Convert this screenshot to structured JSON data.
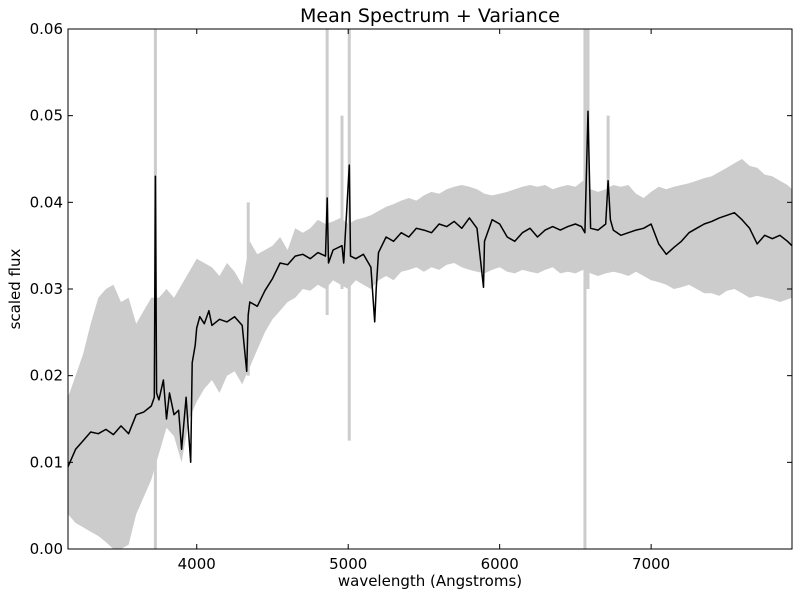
{
  "chart_data": {
    "type": "line",
    "title": "Mean Spectrum + Variance",
    "xlabel": "wavelength (Angstroms)",
    "ylabel": "scaled flux",
    "xlim": [
      3150,
      7930
    ],
    "ylim": [
      0.0,
      0.06
    ],
    "xticks": [
      4000,
      5000,
      6000,
      7000
    ],
    "xtick_labels": [
      "4000",
      "5000",
      "6000",
      "7000"
    ],
    "yticks": [
      0.0,
      0.01,
      0.02,
      0.03,
      0.04,
      0.05,
      0.06
    ],
    "ytick_labels": [
      "0.00",
      "0.01",
      "0.02",
      "0.03",
      "0.04",
      "0.05",
      "0.06"
    ],
    "grid": false,
    "colors": {
      "mean": "#000000",
      "variance": "#cccccc",
      "axes": "#000000"
    },
    "series": [
      {
        "name": "mean",
        "style": "line",
        "x": [
          3150,
          3200,
          3250,
          3300,
          3350,
          3400,
          3450,
          3500,
          3550,
          3600,
          3650,
          3700,
          3720,
          3727,
          3735,
          3750,
          3780,
          3800,
          3820,
          3850,
          3880,
          3900,
          3930,
          3960,
          3970,
          3990,
          4000,
          4020,
          4050,
          4080,
          4100,
          4150,
          4200,
          4250,
          4300,
          4330,
          4340,
          4350,
          4400,
          4450,
          4500,
          4550,
          4600,
          4650,
          4700,
          4750,
          4800,
          4850,
          4861,
          4870,
          4900,
          4959,
          4970,
          5007,
          5015,
          5050,
          5100,
          5150,
          5175,
          5185,
          5200,
          5250,
          5300,
          5350,
          5400,
          5450,
          5500,
          5550,
          5600,
          5650,
          5700,
          5750,
          5800,
          5850,
          5893,
          5900,
          5950,
          6000,
          6050,
          6100,
          6150,
          6200,
          6250,
          6300,
          6350,
          6400,
          6450,
          6500,
          6540,
          6563,
          6583,
          6600,
          6650,
          6700,
          6716,
          6731,
          6750,
          6800,
          6850,
          6900,
          6950,
          7000,
          7050,
          7100,
          7150,
          7200,
          7250,
          7300,
          7350,
          7400,
          7450,
          7500,
          7550,
          7600,
          7650,
          7700,
          7750,
          7800,
          7850,
          7900,
          7930
        ],
        "y": [
          0.0095,
          0.0115,
          0.0125,
          0.0135,
          0.0133,
          0.0138,
          0.0132,
          0.0142,
          0.0133,
          0.0155,
          0.0158,
          0.0165,
          0.0175,
          0.043,
          0.018,
          0.0172,
          0.0195,
          0.015,
          0.018,
          0.0155,
          0.016,
          0.0115,
          0.0175,
          0.01,
          0.0215,
          0.0235,
          0.0255,
          0.0268,
          0.026,
          0.0275,
          0.0258,
          0.0265,
          0.0262,
          0.0268,
          0.0258,
          0.0205,
          0.027,
          0.0285,
          0.028,
          0.0298,
          0.0312,
          0.033,
          0.0328,
          0.0338,
          0.034,
          0.0335,
          0.0342,
          0.0338,
          0.0405,
          0.033,
          0.0345,
          0.035,
          0.033,
          0.0443,
          0.0338,
          0.0335,
          0.034,
          0.0325,
          0.0262,
          0.03,
          0.0342,
          0.036,
          0.0355,
          0.0365,
          0.036,
          0.037,
          0.0368,
          0.0365,
          0.0375,
          0.0372,
          0.0378,
          0.037,
          0.0382,
          0.037,
          0.0302,
          0.0355,
          0.038,
          0.0375,
          0.036,
          0.0355,
          0.0365,
          0.037,
          0.036,
          0.0368,
          0.0372,
          0.0368,
          0.0372,
          0.0375,
          0.0372,
          0.0365,
          0.0505,
          0.037,
          0.0368,
          0.0375,
          0.0425,
          0.038,
          0.0368,
          0.0362,
          0.0365,
          0.0368,
          0.037,
          0.0375,
          0.0352,
          0.034,
          0.0348,
          0.0355,
          0.0365,
          0.037,
          0.0375,
          0.0378,
          0.0382,
          0.0385,
          0.0388,
          0.038,
          0.037,
          0.0352,
          0.0362,
          0.0358,
          0.0362,
          0.0355,
          0.035
        ]
      },
      {
        "name": "variance",
        "style": "band",
        "x": [
          3150,
          3200,
          3250,
          3300,
          3350,
          3400,
          3450,
          3500,
          3550,
          3600,
          3650,
          3700,
          3750,
          3800,
          3850,
          3900,
          3950,
          4000,
          4050,
          4100,
          4150,
          4200,
          4250,
          4300,
          4350,
          4400,
          4450,
          4500,
          4550,
          4600,
          4650,
          4700,
          4750,
          4800,
          4850,
          4900,
          4950,
          5000,
          5050,
          5100,
          5150,
          5200,
          5250,
          5300,
          5350,
          5400,
          5450,
          5500,
          5550,
          5600,
          5650,
          5700,
          5750,
          5800,
          5850,
          5900,
          5950,
          6000,
          6050,
          6100,
          6150,
          6200,
          6250,
          6300,
          6350,
          6400,
          6450,
          6500,
          6550,
          6600,
          6650,
          6700,
          6750,
          6800,
          6850,
          6900,
          6950,
          7000,
          7050,
          7100,
          7150,
          7200,
          7250,
          7300,
          7350,
          7400,
          7450,
          7500,
          7550,
          7600,
          7650,
          7700,
          7750,
          7800,
          7850,
          7900,
          7930
        ],
        "upper": [
          0.0175,
          0.02,
          0.0225,
          0.026,
          0.029,
          0.03,
          0.0305,
          0.0285,
          0.029,
          0.026,
          0.0275,
          0.029,
          0.029,
          0.03,
          0.029,
          0.0305,
          0.032,
          0.0335,
          0.033,
          0.0325,
          0.0315,
          0.033,
          0.032,
          0.0305,
          0.0355,
          0.034,
          0.0345,
          0.035,
          0.036,
          0.0345,
          0.037,
          0.0365,
          0.037,
          0.038,
          0.0375,
          0.0378,
          0.0382,
          0.0375,
          0.038,
          0.0382,
          0.0385,
          0.039,
          0.0395,
          0.0398,
          0.0402,
          0.0405,
          0.0402,
          0.0408,
          0.0412,
          0.041,
          0.0415,
          0.0418,
          0.042,
          0.0418,
          0.0415,
          0.041,
          0.0408,
          0.041,
          0.0412,
          0.0415,
          0.0418,
          0.042,
          0.0418,
          0.042,
          0.0415,
          0.0418,
          0.042,
          0.0418,
          0.0425,
          0.0415,
          0.0412,
          0.0415,
          0.042,
          0.0418,
          0.042,
          0.041,
          0.0405,
          0.0412,
          0.0418,
          0.0415,
          0.0418,
          0.042,
          0.0422,
          0.0425,
          0.0428,
          0.043,
          0.0435,
          0.044,
          0.0445,
          0.045,
          0.0442,
          0.044,
          0.0432,
          0.043,
          0.0425,
          0.042,
          0.0415
        ],
        "lower": [
          0.004,
          0.003,
          0.0025,
          0.002,
          0.0015,
          0.0008,
          0.0,
          0.0,
          0.0005,
          0.004,
          0.006,
          0.008,
          0.011,
          0.014,
          0.013,
          0.01,
          0.015,
          0.017,
          0.0185,
          0.0195,
          0.018,
          0.02,
          0.0205,
          0.019,
          0.021,
          0.023,
          0.025,
          0.0265,
          0.0275,
          0.0285,
          0.029,
          0.03,
          0.0298,
          0.0305,
          0.03,
          0.031,
          0.0305,
          0.03,
          0.031,
          0.0305,
          0.03,
          0.031,
          0.0315,
          0.031,
          0.032,
          0.0322,
          0.0325,
          0.032,
          0.0325,
          0.0322,
          0.0328,
          0.033,
          0.0325,
          0.0322,
          0.032,
          0.0318,
          0.0322,
          0.0325,
          0.032,
          0.0318,
          0.0322,
          0.032,
          0.0318,
          0.0322,
          0.0325,
          0.0318,
          0.032,
          0.0318,
          0.0322,
          0.0318,
          0.0315,
          0.0318,
          0.032,
          0.0318,
          0.0315,
          0.032,
          0.0315,
          0.031,
          0.0308,
          0.0305,
          0.03,
          0.0302,
          0.0305,
          0.03,
          0.0295,
          0.0295,
          0.0292,
          0.0298,
          0.03,
          0.0295,
          0.029,
          0.0292,
          0.029,
          0.0288,
          0.0285,
          0.0288,
          0.029
        ]
      }
    ],
    "spikes": [
      {
        "x": 3727,
        "from": 0.0,
        "to": 0.06
      },
      {
        "x": 4861,
        "from": 0.027,
        "to": 0.06
      },
      {
        "x": 4959,
        "from": 0.03,
        "to": 0.05
      },
      {
        "x": 5007,
        "from": 0.0125,
        "to": 0.06
      },
      {
        "x": 6563,
        "from": 0.0,
        "to": 0.06
      },
      {
        "x": 6583,
        "from": 0.03,
        "to": 0.06
      },
      {
        "x": 6716,
        "from": 0.033,
        "to": 0.05
      },
      {
        "x": 4340,
        "from": 0.02,
        "to": 0.04
      }
    ]
  }
}
